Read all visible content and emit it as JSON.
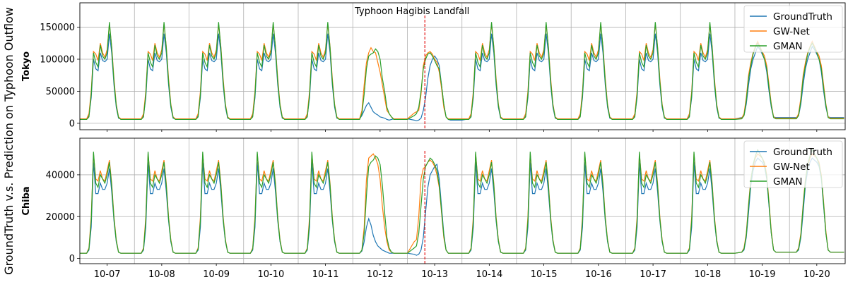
{
  "chart_data": {
    "type": "line",
    "ylabel_shared": "GroundTruth v.s. Prediction on Typhoon Outflow",
    "annotation": {
      "text": "Typhoon Hagibis Landfall",
      "day_index": 5.5
    },
    "x_tick_labels": [
      "10-07",
      "10-08",
      "10-09",
      "10-10",
      "10-11",
      "10-12",
      "10-13",
      "10-14",
      "10-15",
      "10-16",
      "10-17",
      "10-18",
      "10-19",
      "10-20"
    ],
    "series_styles": [
      {
        "name": "GroundTruth",
        "color": "#1f77b4"
      },
      {
        "name": "GW-Net",
        "color": "#ff7f0e"
      },
      {
        "name": "GMAN",
        "color": "#2ca02c"
      }
    ],
    "legend_position": "top-right",
    "grid": true,
    "panels": [
      {
        "ylabel": "Tokyo",
        "ylim": [
          -10000,
          188000
        ],
        "yticks": [
          0,
          50000,
          100000,
          150000
        ],
        "daily_profile": {
          "hours": [
            0,
            3,
            4,
            5,
            6,
            7,
            8,
            9,
            10,
            11,
            12,
            13,
            14,
            15,
            16,
            17,
            18,
            19,
            20,
            21,
            22,
            23,
            24
          ],
          "GroundTruth": [
            7000,
            7000,
            12000,
            40000,
            100000,
            85000,
            82000,
            110000,
            98000,
            96000,
            100000,
            140000,
            110000,
            60000,
            25000,
            8000,
            7000,
            7000,
            7000,
            7000,
            7000,
            7000,
            7000
          ],
          "GW-Net": [
            7000,
            7000,
            15000,
            50000,
            112000,
            108000,
            98000,
            125000,
            110000,
            103000,
            115000,
            155000,
            120000,
            70000,
            30000,
            10000,
            7000,
            7000,
            7000,
            7000,
            7000,
            7000,
            7000
          ],
          "GMAN": [
            6000,
            6000,
            10000,
            45000,
            110000,
            95000,
            88000,
            122000,
            105000,
            100000,
            110000,
            158000,
            118000,
            65000,
            28000,
            9000,
            6000,
            6000,
            6000,
            6000,
            6000,
            6000,
            6000
          ]
        },
        "typhoon_day_profile": {
          "hours": [
            0,
            3,
            4,
            5,
            6,
            7,
            8,
            9,
            10,
            11,
            12,
            13,
            14,
            15,
            16,
            17,
            18,
            19,
            20,
            21,
            22,
            23,
            24
          ],
          "GroundTruth": [
            7000,
            7000,
            12000,
            20000,
            28000,
            32000,
            25000,
            18000,
            15000,
            13000,
            10000,
            9000,
            8000,
            6000,
            5000,
            6000,
            7000,
            7000,
            7000,
            7000,
            7000,
            7000,
            7000
          ],
          "GW-Net": [
            7000,
            7000,
            20000,
            60000,
            95000,
            110000,
            118000,
            112000,
            110000,
            95000,
            80000,
            60000,
            40000,
            20000,
            15000,
            10000,
            7000,
            7000,
            7000,
            7000,
            7000,
            7000,
            7000
          ],
          "GMAN": [
            6000,
            6000,
            15000,
            45000,
            85000,
            105000,
            108000,
            110000,
            116000,
            112000,
            100000,
            70000,
            50000,
            25000,
            15000,
            10000,
            6000,
            6000,
            6000,
            6000,
            6000,
            6000,
            6000
          ]
        },
        "recovery_day_profile": {
          "hours": [
            0,
            3,
            4,
            5,
            6,
            7,
            8,
            9,
            10,
            11,
            12,
            13,
            14,
            15,
            16,
            17,
            18,
            19,
            20,
            21,
            22,
            23,
            24
          ],
          "GroundTruth": [
            5000,
            5000,
            4000,
            5000,
            8000,
            20000,
            40000,
            70000,
            90000,
            100000,
            105000,
            100000,
            90000,
            60000,
            30000,
            10000,
            6000,
            5000,
            5000,
            5000,
            5000,
            5000,
            5000
          ],
          "GW-Net": [
            15000,
            16000,
            18000,
            20000,
            45000,
            90000,
            105000,
            110000,
            112000,
            108000,
            100000,
            95000,
            80000,
            55000,
            25000,
            10000,
            7000,
            7000,
            7000,
            7000,
            7000,
            7000,
            7000
          ],
          "GMAN": [
            10000,
            12000,
            15000,
            25000,
            50000,
            85000,
            100000,
            108000,
            110000,
            105000,
            98000,
            90000,
            85000,
            60000,
            30000,
            10000,
            6000,
            6000,
            6000,
            6000,
            6000,
            6000,
            6000
          ]
        },
        "weekend_profile": {
          "hours": [
            0,
            3,
            4,
            5,
            6,
            7,
            8,
            9,
            10,
            11,
            12,
            13,
            14,
            15,
            16,
            17,
            18,
            19,
            20,
            21,
            22,
            23,
            24
          ],
          "GroundTruth": [
            9000,
            9000,
            12000,
            30000,
            60000,
            85000,
            100000,
            110000,
            120000,
            115000,
            108000,
            100000,
            80000,
            50000,
            25000,
            10000,
            9000,
            9000,
            9000,
            9000,
            9000,
            9000,
            9000
          ],
          "GW-Net": [
            8000,
            8000,
            15000,
            40000,
            75000,
            95000,
            110000,
            120000,
            128000,
            120000,
            112000,
            105000,
            90000,
            60000,
            30000,
            10000,
            8000,
            8000,
            8000,
            8000,
            8000,
            8000,
            8000
          ],
          "GMAN": [
            7000,
            7000,
            12000,
            35000,
            70000,
            90000,
            108000,
            118000,
            125000,
            118000,
            110000,
            100000,
            85000,
            55000,
            28000,
            9000,
            7000,
            7000,
            7000,
            7000,
            7000,
            7000,
            7000
          ]
        }
      },
      {
        "ylabel": "Chiba",
        "ylim": [
          -2500,
          57500
        ],
        "yticks": [
          0,
          20000,
          40000
        ],
        "daily_profile": {
          "hours": [
            0,
            3,
            4,
            5,
            6,
            7,
            8,
            9,
            10,
            11,
            12,
            13,
            14,
            15,
            16,
            17,
            18,
            19,
            20,
            21,
            22,
            23,
            24
          ],
          "GroundTruth": [
            2500,
            2500,
            4000,
            15000,
            46000,
            31000,
            31000,
            36000,
            33000,
            33000,
            36000,
            43000,
            32000,
            18000,
            8000,
            3000,
            2500,
            2500,
            2500,
            2500,
            2500,
            2500,
            2500
          ],
          "GW-Net": [
            2500,
            2500,
            5000,
            20000,
            50000,
            38000,
            37000,
            42000,
            38000,
            37000,
            42000,
            47000,
            36000,
            20000,
            9000,
            3000,
            2500,
            2500,
            2500,
            2500,
            2500,
            2500,
            2500
          ],
          "GMAN": [
            2500,
            2500,
            4500,
            18000,
            51000,
            36000,
            34000,
            40000,
            38000,
            36000,
            40000,
            46000,
            35000,
            19000,
            8500,
            3000,
            2500,
            2500,
            2500,
            2500,
            2500,
            2500,
            2500
          ]
        },
        "typhoon_day_profile": {
          "hours": [
            0,
            3,
            4,
            5,
            6,
            7,
            8,
            9,
            10,
            11,
            12,
            13,
            14,
            15,
            16,
            17,
            18,
            19,
            20,
            21,
            22,
            23,
            24
          ],
          "GroundTruth": [
            2500,
            2500,
            3500,
            8000,
            15000,
            19000,
            16000,
            11000,
            8000,
            6000,
            5000,
            4000,
            3500,
            3000,
            2500,
            2500,
            2500,
            2500,
            2500,
            2500,
            2500,
            2500,
            2500
          ],
          "GW-Net": [
            2500,
            2500,
            4000,
            15000,
            38000,
            48000,
            49000,
            50000,
            48000,
            45000,
            38000,
            25000,
            15000,
            8000,
            4000,
            3000,
            2500,
            2500,
            2500,
            2500,
            2500,
            2500,
            2500
          ],
          "GMAN": [
            2500,
            2500,
            4000,
            12000,
            30000,
            44000,
            46000,
            47000,
            49000,
            48000,
            45000,
            35000,
            22000,
            10000,
            5000,
            3000,
            2500,
            2500,
            2500,
            2500,
            2500,
            2500,
            2500
          ]
        },
        "recovery_day_profile": {
          "hours": [
            0,
            3,
            4,
            5,
            6,
            7,
            8,
            9,
            10,
            11,
            12,
            13,
            14,
            15,
            16,
            17,
            18,
            19,
            20,
            21,
            22,
            23,
            24
          ],
          "GroundTruth": [
            2000,
            2000,
            1500,
            2000,
            4000,
            10000,
            22000,
            34000,
            40000,
            42000,
            44000,
            45000,
            38000,
            25000,
            12000,
            4000,
            2500,
            2500,
            2500,
            2500,
            2500,
            2500,
            2500
          ],
          "GW-Net": [
            8000,
            8000,
            9000,
            20000,
            38000,
            43000,
            44000,
            46000,
            47000,
            46000,
            44000,
            40000,
            34000,
            22000,
            10000,
            4000,
            2500,
            2500,
            2500,
            2500,
            2500,
            2500,
            2500
          ],
          "GMAN": [
            5000,
            5000,
            6000,
            12000,
            25000,
            38000,
            44000,
            46000,
            48000,
            47000,
            45000,
            42000,
            35000,
            23000,
            11000,
            4000,
            2500,
            2500,
            2500,
            2500,
            2500,
            2500,
            2500
          ]
        },
        "weekend_profile": {
          "hours": [
            0,
            3,
            4,
            5,
            6,
            7,
            8,
            9,
            10,
            11,
            12,
            13,
            14,
            15,
            16,
            17,
            18,
            19,
            20,
            21,
            22,
            23,
            24
          ],
          "GroundTruth": [
            3000,
            3000,
            4000,
            10000,
            22000,
            35000,
            42000,
            46000,
            48000,
            47000,
            46000,
            44000,
            38000,
            25000,
            12000,
            4000,
            3000,
            3000,
            3000,
            3000,
            3000,
            3000,
            3000
          ],
          "GW-Net": [
            3000,
            3000,
            5000,
            12000,
            26000,
            38000,
            44000,
            48000,
            50000,
            49000,
            48000,
            46000,
            40000,
            27000,
            13000,
            4000,
            3000,
            3000,
            3000,
            3000,
            3000,
            3000,
            3000
          ],
          "GMAN": [
            3000,
            3000,
            4500,
            11000,
            25000,
            37000,
            45000,
            49000,
            52000,
            50000,
            48000,
            45000,
            39000,
            26000,
            12000,
            4000,
            3000,
            3000,
            3000,
            3000,
            3000,
            3000,
            3000
          ]
        }
      }
    ],
    "day_profile_assignment": [
      "daily",
      "daily",
      "daily",
      "daily",
      "daily",
      "typhoon",
      "recovery",
      "daily",
      "daily",
      "daily",
      "daily",
      "daily",
      "weekend",
      "weekend"
    ]
  }
}
